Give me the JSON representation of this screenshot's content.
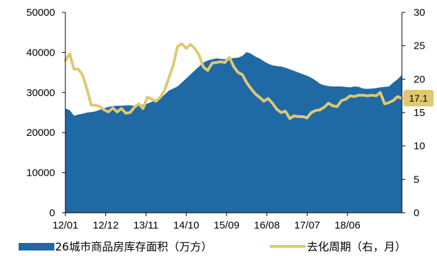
{
  "chart_data": {
    "type": "area+line",
    "x_tick_labels": [
      "12/01",
      "12/12",
      "13/11",
      "14/10",
      "15/09",
      "16/08",
      "17/07",
      "18/06"
    ],
    "y_left": {
      "ylim": [
        0,
        50000
      ],
      "ticks": [
        0,
        10000,
        20000,
        30000,
        40000,
        50000
      ]
    },
    "y_right": {
      "ylim": [
        0,
        30
      ],
      "ticks": [
        0,
        5,
        10,
        15,
        20,
        25,
        30
      ]
    },
    "series": [
      {
        "name": "26城市商品房库存面积（万方）",
        "type": "area",
        "axis": "left",
        "color": "#1f6aa5",
        "values": [
          26000,
          25600,
          24200,
          24500,
          24700,
          25000,
          25100,
          25300,
          25700,
          26100,
          26400,
          26600,
          26700,
          26700,
          26800,
          26800,
          26700,
          26800,
          27000,
          27200,
          27700,
          28000,
          28500,
          29500,
          30500,
          31000,
          31500,
          32500,
          33500,
          34500,
          35500,
          36500,
          37500,
          38000,
          38300,
          38500,
          38400,
          38300,
          38500,
          38600,
          38700,
          39100,
          40100,
          39700,
          39000,
          38500,
          37800,
          37200,
          36800,
          36600,
          36500,
          36200,
          35800,
          35400,
          35000,
          34600,
          34200,
          33700,
          33000,
          32200,
          31800,
          31600,
          31500,
          31500,
          31500,
          31400,
          31300,
          31500,
          31400,
          31000,
          30900,
          31000,
          31100,
          31300,
          31400,
          31500,
          32500,
          33300,
          34400
        ]
      },
      {
        "name": "去化周期（右，月）",
        "type": "line",
        "axis": "right",
        "color": "#e0c870",
        "values": [
          22.8,
          23.8,
          21.5,
          21.5,
          20.6,
          18.5,
          16.1,
          16.1,
          15.9,
          15.4,
          15.1,
          15.7,
          15.1,
          15.6,
          14.9,
          15.0,
          15.8,
          16.3,
          15.6,
          17.3,
          17.0,
          16.7,
          17.3,
          18.3,
          20.2,
          22.1,
          24.9,
          25.3,
          24.6,
          25.2,
          24.6,
          23.6,
          21.8,
          21.3,
          22.4,
          22.5,
          22.6,
          22.5,
          23.3,
          21.9,
          21.0,
          20.7,
          19.5,
          18.6,
          17.8,
          17.3,
          16.7,
          17.1,
          16.4,
          15.5,
          15.0,
          15.2,
          14.1,
          14.5,
          14.4,
          14.4,
          14.2,
          15.0,
          15.3,
          15.4,
          15.8,
          16.4,
          16.0,
          15.9,
          16.8,
          17.0,
          17.5,
          17.4,
          17.6,
          17.6,
          17.5,
          17.6,
          17.5,
          18.0,
          16.3,
          16.5,
          16.8,
          17.4,
          17.1
        ]
      }
    ],
    "annotation": {
      "label": "17.1"
    },
    "legend_position": "bottom"
  }
}
